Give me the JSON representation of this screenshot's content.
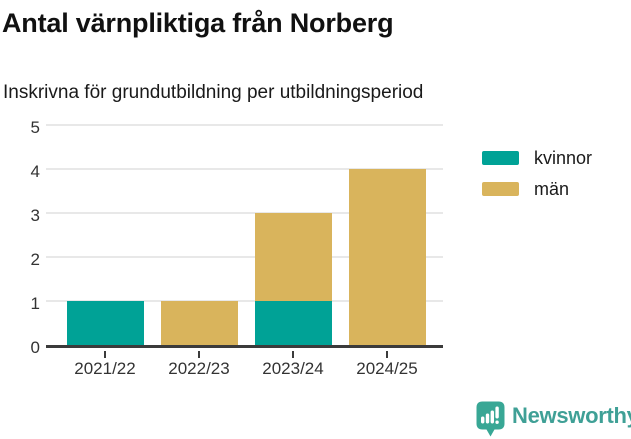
{
  "chart_data": {
    "type": "bar",
    "stacked": true,
    "title": "Antal värnpliktiga från Norberg",
    "subtitle": "Inskrivna för grundutbildning per utbildningsperiod",
    "categories": [
      "2021/22",
      "2022/23",
      "2023/24",
      "2024/25"
    ],
    "series": [
      {
        "name": "kvinnor",
        "color": "#00a296",
        "values": [
          1,
          0,
          1,
          0
        ]
      },
      {
        "name": "män",
        "color": "#d9b45c",
        "values": [
          0,
          1,
          2,
          4
        ]
      }
    ],
    "ylim": [
      0,
      5
    ],
    "yticks": [
      0,
      1,
      2,
      3,
      4,
      5
    ],
    "grid": true,
    "legend_position": "right",
    "colors": {
      "axis": "#3b3b3b",
      "gridline": "#e8e8e8",
      "tick_label": "#333333"
    }
  },
  "branding": {
    "logo_text": "Newsworthy",
    "logo_color": "#3fa096",
    "logo_icon": "bar-chart-speech-bubble-icon"
  }
}
